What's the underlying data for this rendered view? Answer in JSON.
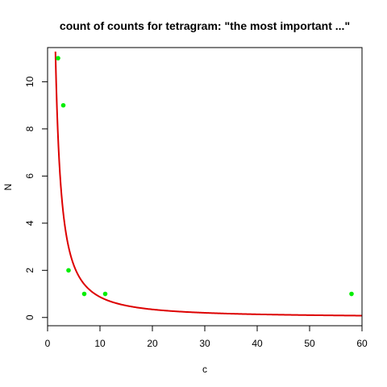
{
  "chart_data": {
    "type": "scatter",
    "title": "count of counts for tetragram: \"the most important ...\"",
    "xlabel": "c",
    "ylabel": "N",
    "xlim": [
      0,
      60
    ],
    "ylim": [
      -0.35,
      11.45
    ],
    "xticks": [
      0,
      10,
      20,
      30,
      40,
      50,
      60
    ],
    "yticks": [
      0,
      2,
      4,
      6,
      8,
      10
    ],
    "grid": false,
    "points": [
      {
        "x": 2,
        "y": 11
      },
      {
        "x": 3,
        "y": 9
      },
      {
        "x": 4,
        "y": 2
      },
      {
        "x": 7,
        "y": 1
      },
      {
        "x": 11,
        "y": 1
      },
      {
        "x": 58,
        "y": 1
      }
    ],
    "fit_curve": {
      "formula": "N = 19.5 * c^-1.35",
      "coefficient": 19.5,
      "exponent": -1.35,
      "x_range": [
        1.5,
        60
      ]
    },
    "colors": {
      "points": "#00ee00",
      "curve": "#dd0000",
      "axes": "#000000"
    }
  }
}
